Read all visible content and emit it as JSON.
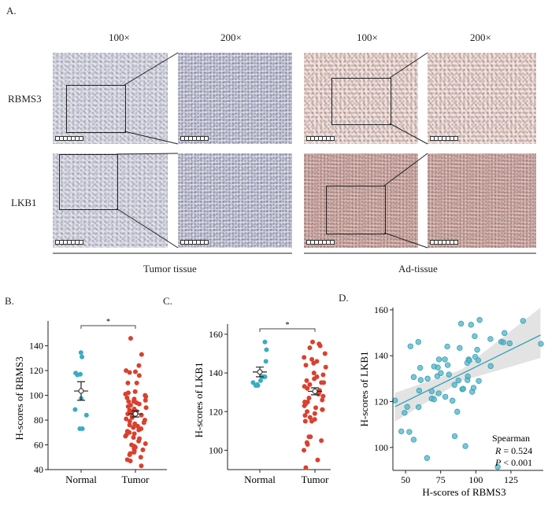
{
  "panel_labels": {
    "a": "A.",
    "b": "B.",
    "c": "C.",
    "d": "D."
  },
  "panel_a": {
    "magnifications": [
      "100×",
      "200×",
      "100×",
      "200×"
    ],
    "row_labels": [
      "RBMS3",
      "LKB1"
    ],
    "group_labels": [
      "Tumor tissue",
      "Ad-tissue"
    ]
  },
  "chart_data": [
    {
      "type": "scatter",
      "ylabel": "H-scores of RBMS3",
      "categories": [
        "Normal",
        "Tumor"
      ],
      "ylim": [
        40,
        155
      ],
      "yticks": [
        40,
        60,
        80,
        100,
        120,
        140
      ],
      "significance": "*",
      "colors": {
        "Normal": "#3aabc6",
        "Tumor": "#d9412e"
      },
      "series": [
        {
          "category": "Normal",
          "values": [
            134.5,
            131,
            118,
            116.5,
            117,
            97.5,
            88.5,
            84,
            73,
            73
          ],
          "mean": 103.5,
          "se": 7.5
        },
        {
          "category": "Tumor",
          "values": [
            146,
            133,
            124,
            120,
            119,
            118.5,
            116,
            110,
            110,
            103,
            102,
            101,
            100,
            99,
            98,
            97,
            96,
            95,
            95,
            94,
            93,
            92,
            91,
            90,
            89,
            88,
            87,
            86,
            85,
            84,
            83,
            82,
            81,
            80,
            79,
            78,
            77,
            76,
            75,
            74,
            73,
            72,
            71,
            70,
            69,
            68,
            67,
            66,
            65,
            63,
            61,
            60,
            59,
            58,
            57,
            56,
            55,
            54,
            53,
            52,
            50,
            48,
            47,
            43
          ],
          "mean": 85,
          "se": 2.5
        }
      ]
    },
    {
      "type": "scatter",
      "ylabel": "H-scores of LKB1",
      "categories": [
        "Normal",
        "Tumor"
      ],
      "ylim": [
        90,
        162
      ],
      "yticks": [
        100,
        120,
        140,
        160
      ],
      "significance": "*",
      "colors": {
        "Normal": "#3aabc6",
        "Tumor": "#d9412e"
      },
      "series": [
        {
          "category": "Normal",
          "values": [
            156,
            152,
            146,
            138,
            138,
            138,
            136,
            135,
            134,
            133.5,
            133.5
          ],
          "mean": 140.5,
          "se": 2.5
        },
        {
          "category": "Tumor",
          "values": [
            156,
            155,
            154,
            153,
            150,
            148,
            147,
            146,
            145,
            144,
            143,
            140,
            139,
            138,
            137,
            136,
            135,
            135,
            134,
            133,
            132,
            131,
            130,
            129,
            128,
            127,
            126,
            125,
            125,
            124,
            123,
            122,
            121,
            121,
            120,
            119,
            118,
            117,
            116,
            115,
            115,
            107,
            107,
            105,
            104,
            103,
            100,
            95,
            91
          ],
          "mean": 130.5,
          "se": 1.8
        }
      ]
    },
    {
      "type": "scatter",
      "xlabel": "H-scores of RBMS3",
      "ylabel": "H-scores of LKB1",
      "xlim": [
        41,
        148
      ],
      "ylim": [
        90,
        161
      ],
      "xticks": [
        50,
        75,
        100,
        125
      ],
      "yticks": [
        100,
        120,
        140,
        160
      ],
      "color": "#4fb3c7",
      "points": [
        [
          42.5,
          120.5
        ],
        [
          49.3,
          115.1
        ],
        [
          51.2,
          117.7
        ],
        [
          47,
          107
        ],
        [
          52.7,
          106.8
        ],
        [
          55.8,
          103.4
        ],
        [
          53.5,
          144.1
        ],
        [
          59.1,
          146
        ],
        [
          55.8,
          130.7
        ],
        [
          60.4,
          134.7
        ],
        [
          60.8,
          129.4
        ],
        [
          59.7,
          124.8
        ],
        [
          59.3,
          117.6
        ],
        [
          65.7,
          130
        ],
        [
          65.3,
          95.4
        ],
        [
          68.6,
          124.5
        ],
        [
          68.6,
          121.3
        ],
        [
          70.3,
          121
        ],
        [
          70.3,
          135.3
        ],
        [
          73,
          134.9
        ],
        [
          72.6,
          131.1
        ],
        [
          73.8,
          138.4
        ],
        [
          75.1,
          132.4
        ],
        [
          73.6,
          123.6
        ],
        [
          78,
          138.4
        ],
        [
          78.3,
          122.1
        ],
        [
          79.7,
          144
        ],
        [
          80,
          135.9
        ],
        [
          80.9,
          131.8
        ],
        [
          83.4,
          120.4
        ],
        [
          84.8,
          127.3
        ],
        [
          85,
          104.9
        ],
        [
          86.8,
          115.6
        ],
        [
          87.6,
          129.2
        ],
        [
          88.5,
          143.4
        ],
        [
          89.5,
          154
        ],
        [
          90.4,
          125.4
        ],
        [
          91,
          125.6
        ],
        [
          92.6,
          100.6
        ],
        [
          93.9,
          136.9
        ],
        [
          94.3,
          131
        ],
        [
          94.1,
          129.4
        ],
        [
          94.9,
          138.4
        ],
        [
          95.5,
          138
        ],
        [
          96.6,
          153.5
        ],
        [
          97.4,
          124.3
        ],
        [
          98.4,
          126
        ],
        [
          99.2,
          148.5
        ],
        [
          99.6,
          139.5
        ],
        [
          101,
          142.6
        ],
        [
          101.7,
          138
        ],
        [
          102.1,
          129
        ],
        [
          102.7,
          155.6
        ],
        [
          110.6,
          135.5
        ],
        [
          110.4,
          147.3
        ],
        [
          115.6,
          91.5
        ],
        [
          118.1,
          146.1
        ],
        [
          119.6,
          145.8
        ],
        [
          120.4,
          149.9
        ],
        [
          124.1,
          145.4
        ],
        [
          133.6,
          155.2
        ],
        [
          146.3,
          145.2
        ]
      ],
      "fit_line": [
        [
          42.5,
          117.8
        ],
        [
          146,
          149
        ]
      ],
      "annotation": {
        "method": "Spearman",
        "r_label": "R",
        "r_text": " = 0.524",
        "p_label": "P",
        "p_text": " < 0.001"
      }
    }
  ]
}
